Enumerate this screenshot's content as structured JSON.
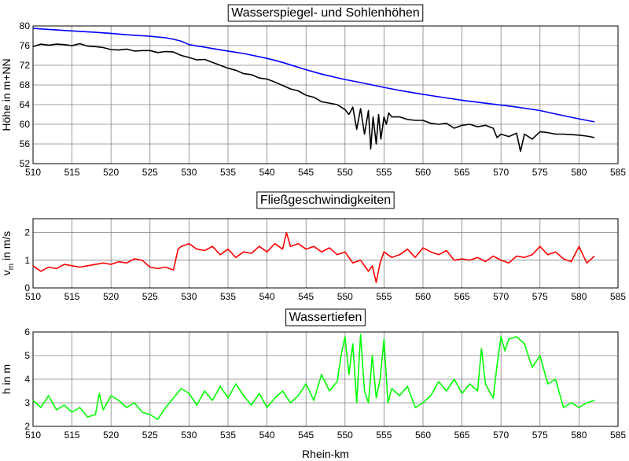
{
  "colors": {
    "wasserspiegel": "#0000ff",
    "sohle": "#000000",
    "velocity": "#ff0000",
    "depth": "#00ff00",
    "grid": "#808080"
  },
  "chart_data": [
    {
      "type": "line",
      "title": "Wasserspiegel- und Sohlenhöhen",
      "xlabel": "",
      "ylabel": "Höhe in m+NN",
      "xlim": [
        510,
        585
      ],
      "ylim": [
        52,
        80
      ],
      "x_ticks": [
        510,
        515,
        520,
        525,
        530,
        535,
        540,
        545,
        550,
        555,
        560,
        565,
        570,
        575,
        580,
        585
      ],
      "y_ticks": [
        52,
        56,
        60,
        64,
        68,
        72,
        76,
        80
      ],
      "grid": true,
      "series": [
        {
          "color": "#0000ff",
          "x": [
            510,
            512,
            515,
            518,
            520,
            522,
            525,
            527,
            528,
            529,
            530,
            533,
            535,
            537,
            540,
            542,
            545,
            547,
            550,
            552,
            555,
            557,
            560,
            562,
            565,
            567,
            570,
            572,
            575,
            577,
            580,
            582
          ],
          "values": [
            79.5,
            79.3,
            79.0,
            78.7,
            78.5,
            78.2,
            77.9,
            77.6,
            77.3,
            76.9,
            76.2,
            75.4,
            74.9,
            74.4,
            73.4,
            72.6,
            71.1,
            70.2,
            69.1,
            68.5,
            67.5,
            66.9,
            66.1,
            65.6,
            64.9,
            64.5,
            63.9,
            63.5,
            62.8,
            62.1,
            61.1,
            60.5
          ]
        },
        {
          "color": "#000000",
          "x": [
            510,
            511,
            512,
            513,
            514,
            515,
            516,
            517,
            518,
            519,
            520,
            521,
            522,
            523,
            524,
            525,
            526,
            527,
            528,
            529,
            530,
            531,
            532,
            533,
            534,
            535,
            536,
            537,
            538,
            539,
            540,
            541,
            542,
            543,
            544,
            545,
            546,
            547,
            548,
            549,
            550,
            550.5,
            551,
            551.5,
            552,
            552.5,
            553,
            553.3,
            553.6,
            554,
            554.3,
            554.6,
            555,
            555.3,
            555.6,
            556,
            557,
            558,
            559,
            560,
            561,
            562,
            563,
            564,
            565,
            566,
            567,
            568,
            569,
            569.5,
            570,
            571,
            572,
            572.5,
            573,
            574,
            575,
            576,
            577,
            578,
            579,
            580,
            581,
            582
          ],
          "values": [
            75.8,
            76.3,
            76.1,
            76.3,
            76.2,
            76.0,
            76.4,
            75.9,
            75.8,
            75.6,
            75.2,
            75.1,
            75.3,
            74.9,
            75.0,
            75.0,
            74.6,
            74.8,
            74.7,
            74.0,
            73.6,
            73.1,
            73.2,
            72.6,
            72.0,
            71.4,
            71.0,
            70.3,
            70.1,
            69.4,
            69.2,
            68.6,
            67.9,
            67.2,
            66.8,
            65.9,
            65.5,
            64.6,
            64.3,
            64.0,
            63.0,
            62.0,
            63.5,
            59.0,
            63.2,
            58.0,
            62.8,
            55.0,
            61.5,
            56.0,
            62.0,
            57.0,
            61.5,
            60.0,
            62.3,
            61.5,
            61.5,
            61.0,
            60.8,
            60.8,
            60.2,
            60.0,
            60.2,
            59.2,
            59.8,
            60.0,
            59.5,
            59.8,
            59.2,
            57.3,
            58.0,
            57.5,
            58.2,
            54.5,
            58.0,
            57.0,
            58.5,
            58.3,
            58.0,
            58.0,
            57.9,
            57.8,
            57.6,
            57.3
          ]
        }
      ]
    },
    {
      "type": "line",
      "title": "Fließgeschwindigkeiten",
      "xlabel": "",
      "ylabel": "v",
      "ylabel_sub": "m",
      "ylabel_rest": " in m/s",
      "xlim": [
        510,
        585
      ],
      "ylim": [
        0,
        2.5
      ],
      "x_ticks": [
        510,
        515,
        520,
        525,
        530,
        535,
        540,
        545,
        550,
        555,
        560,
        565,
        570,
        575,
        580,
        585
      ],
      "y_ticks": [
        0,
        1,
        2
      ],
      "grid": true,
      "series": [
        {
          "color": "#ff0000",
          "x": [
            510,
            511,
            512,
            513,
            514,
            515,
            516,
            517,
            518,
            519,
            520,
            521,
            522,
            523,
            524,
            525,
            526,
            527,
            528,
            528.6,
            529,
            530,
            531,
            532,
            533,
            534,
            535,
            536,
            537,
            538,
            539,
            540,
            541,
            542,
            542.5,
            543,
            544,
            545,
            546,
            547,
            548,
            549,
            550,
            551,
            552,
            553,
            553.5,
            554,
            554.5,
            555,
            556,
            557,
            558,
            559,
            560,
            561,
            562,
            563,
            564,
            565,
            566,
            567,
            568,
            569,
            570,
            571,
            572,
            573,
            574,
            575,
            576,
            577,
            578,
            579,
            580,
            581,
            582
          ],
          "values": [
            0.8,
            0.6,
            0.75,
            0.7,
            0.85,
            0.8,
            0.75,
            0.8,
            0.85,
            0.9,
            0.85,
            0.95,
            0.9,
            1.05,
            1.0,
            0.75,
            0.7,
            0.75,
            0.65,
            1.4,
            1.5,
            1.6,
            1.4,
            1.35,
            1.5,
            1.2,
            1.4,
            1.1,
            1.3,
            1.25,
            1.5,
            1.3,
            1.6,
            1.4,
            2.0,
            1.5,
            1.6,
            1.4,
            1.5,
            1.3,
            1.45,
            1.2,
            1.3,
            0.9,
            1.0,
            0.6,
            0.8,
            0.2,
            0.9,
            1.3,
            1.1,
            1.2,
            1.4,
            1.1,
            1.45,
            1.3,
            1.2,
            1.35,
            1.0,
            1.05,
            1.0,
            1.1,
            0.95,
            1.15,
            1.0,
            0.9,
            1.15,
            1.1,
            1.2,
            1.5,
            1.2,
            1.3,
            1.05,
            0.95,
            1.5,
            0.9,
            1.15
          ]
        }
      ]
    },
    {
      "type": "line",
      "title": "Wassertiefen",
      "xlabel": "Rhein-km",
      "ylabel": "h in m",
      "xlim": [
        510,
        585
      ],
      "ylim": [
        2,
        6
      ],
      "x_ticks": [
        510,
        515,
        520,
        525,
        530,
        535,
        540,
        545,
        550,
        555,
        560,
        565,
        570,
        575,
        580,
        585
      ],
      "y_ticks": [
        2,
        3,
        4,
        5,
        6
      ],
      "grid": true,
      "series": [
        {
          "color": "#00ff00",
          "x": [
            510,
            511,
            512,
            513,
            514,
            515,
            516,
            517,
            518,
            518.5,
            519,
            520,
            521,
            522,
            523,
            524,
            525,
            526,
            527,
            528,
            529,
            530,
            531,
            532,
            533,
            534,
            535,
            536,
            537,
            538,
            539,
            540,
            541,
            542,
            543,
            544,
            545,
            546,
            547,
            548,
            549,
            549.5,
            550,
            550.5,
            551,
            551.5,
            552,
            552.5,
            553,
            553.5,
            554,
            554.5,
            555,
            555.5,
            556,
            557,
            558,
            559,
            560,
            561,
            562,
            563,
            564,
            565,
            566,
            567,
            567.5,
            568,
            569,
            569.5,
            570,
            570.5,
            571,
            572,
            573,
            574,
            575,
            576,
            577,
            578,
            579,
            580,
            581,
            582
          ],
          "values": [
            3.1,
            2.8,
            3.3,
            2.7,
            2.9,
            2.6,
            2.8,
            2.4,
            2.5,
            3.4,
            2.7,
            3.3,
            3.1,
            2.8,
            3.0,
            2.6,
            2.5,
            2.3,
            2.8,
            3.2,
            3.6,
            3.4,
            2.9,
            3.5,
            3.1,
            3.7,
            3.2,
            3.8,
            3.3,
            2.9,
            3.4,
            2.8,
            3.2,
            3.5,
            3.0,
            3.3,
            3.8,
            3.1,
            4.2,
            3.5,
            3.9,
            5.0,
            5.8,
            4.2,
            5.5,
            3.0,
            5.9,
            3.5,
            3.0,
            5.0,
            3.2,
            4.0,
            5.7,
            3.0,
            3.6,
            3.3,
            3.7,
            2.8,
            3.0,
            3.3,
            3.9,
            3.5,
            4.0,
            3.4,
            3.8,
            3.5,
            5.3,
            3.8,
            3.2,
            4.6,
            5.8,
            5.2,
            5.7,
            5.8,
            5.5,
            4.5,
            5.0,
            3.8,
            4.0,
            2.8,
            3.0,
            2.8,
            3.0,
            3.1
          ]
        }
      ]
    }
  ]
}
